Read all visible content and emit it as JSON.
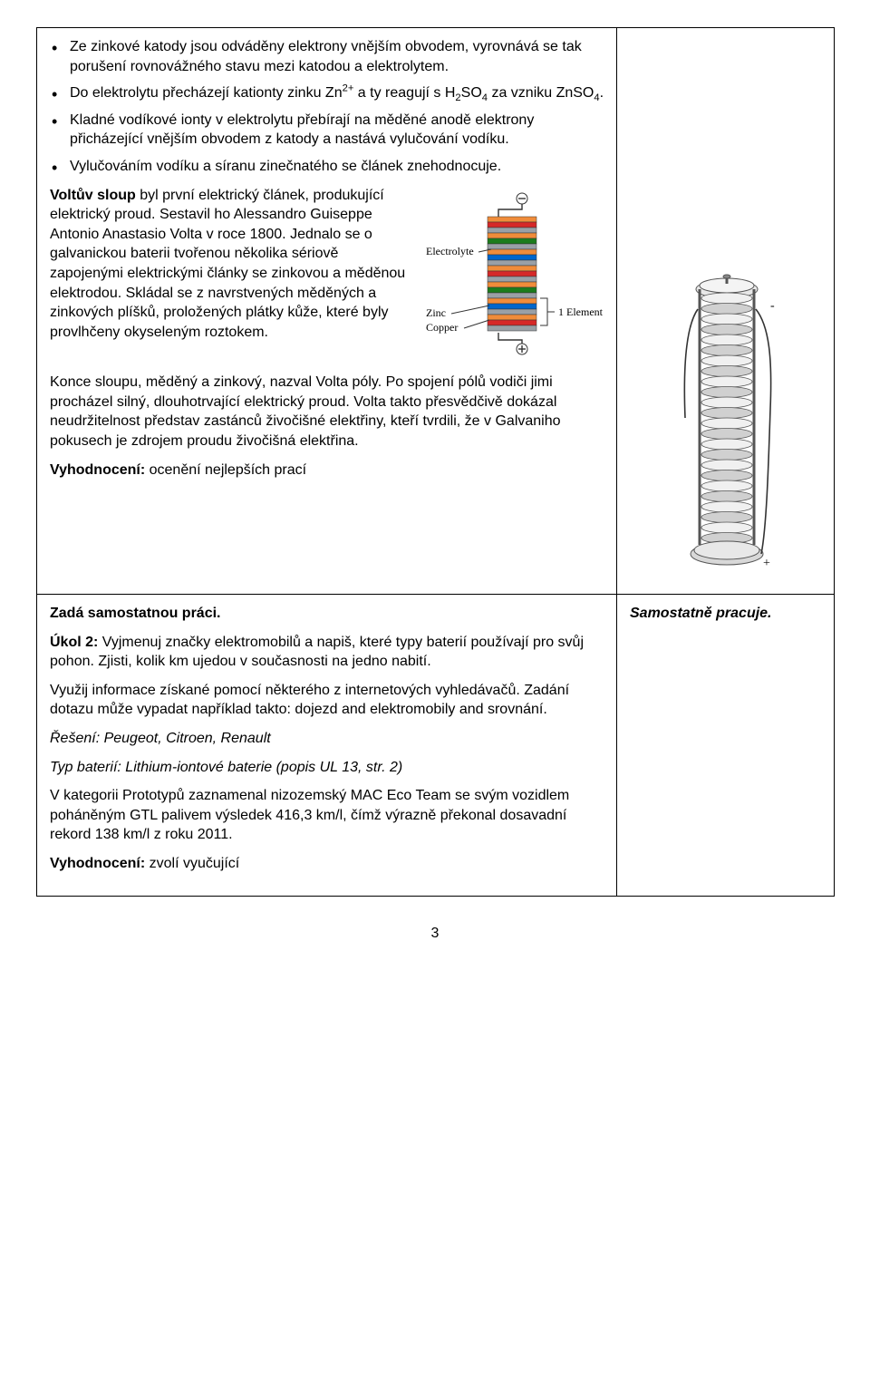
{
  "row1": {
    "bullets": [
      {
        "prefix": "Ze zinkové katody jsou odváděny elektrony vnějším obvodem, vyrovnává se tak porušení rovnovážného stavu mezi katodou a elektrolytem."
      },
      {
        "prefix": "Do elektrolytu přecházejí kationty zinku Zn",
        "sup1": "2+",
        "mid1": " a ty reagují s H",
        "sub1": "2",
        "mid2": "SO",
        "sub2": "4",
        "mid3": " za vzniku ZnSO",
        "sub3": "4",
        "suffix": "."
      },
      {
        "prefix": "Kladné vodíkové ionty v elektrolytu přebírají na měděné anodě elektrony přicházející vnějším obvodem z katody a nastává vylučování vodíku."
      },
      {
        "prefix": "Vylučováním vodíku a síranu zinečnatého se článek znehodnocuje."
      }
    ],
    "p1_bold": "Voltův sloup",
    "p1_rest": " byl první elektrický článek, produkující elektrický proud. Sestavil ho  Alessandro Guiseppe Antonio Anastasio Volta v roce 1800. Jednalo se o galvanickou baterii tvořenou několika sériově zapojenými elektrickými články se zinkovou a měděnou elektrodou. Skládal se z navrstvených měděných a zinkových plíšků, proložených plátky kůže, které byly provlhčeny okyseleným roztokem.",
    "p2": "Konce sloupu, měděný a zinkový, nazval Volta póly. Po spojení pólů vodiči jimi procházel silný, dlouhotrvající elektrický proud. Volta takto přesvědčivě dokázal neudržitelnost představ zastánců živočišné elektřiny, kteří tvrdili, že v Galvaniho pokusech je zdrojem proudu živočišná elektřina.",
    "p3_bold": "Vyhodnocení:",
    "p3_rest": " ocenění nejlepších prací",
    "fig_labels": {
      "minus": "⊖",
      "plus": "⊕",
      "electrolyte": "Electrolyte",
      "zinc": "Zinc",
      "copper": "Copper",
      "element": "1 Element"
    }
  },
  "row2": {
    "t1": "Zadá samostatnou práci.",
    "t2_bold": "Úkol 2:",
    "t2_rest": " Vyjmenuj značky elektromobilů a napiš, které typy baterií používají pro svůj pohon. Zjisti, kolik km ujedou v současnosti na jedno nabití.",
    "t3": "Využij informace získané pomocí některého z internetových vyhledávačů. Zadání dotazu může vypadat například takto: dojezd and elektromobily and srovnání.",
    "t4": "Řešení: Peugeot, Citroen, Renault",
    "t5": "Typ baterií: Lithium-iontové baterie (popis UL 13, str. 2)",
    "t6": "V kategorii Prototypů zaznamenal nizozemský MAC Eco Team se svým vozidlem poháněným GTL palivem výsledek 416,3 km/l, čímž výrazně překonal dosavadní rekord 138 km/l z roku 2011.",
    "t7_bold": "Vyhodnocení:",
    "t7_rest": " zvolí vyučující",
    "right": "Samostatně pracuje."
  },
  "pagenum": "3",
  "colors": {
    "copper": "#f08c3a",
    "zinc": "#9aa0a6",
    "electrolyte_colors": [
      "#d62828",
      "#1c7c1c",
      "#0066cc",
      "#d62828",
      "#1c7c1c",
      "#0066cc",
      "#d62828"
    ],
    "line": "#333333",
    "pile_stroke": "#555555",
    "pile_fill": "#e8e8e8"
  }
}
